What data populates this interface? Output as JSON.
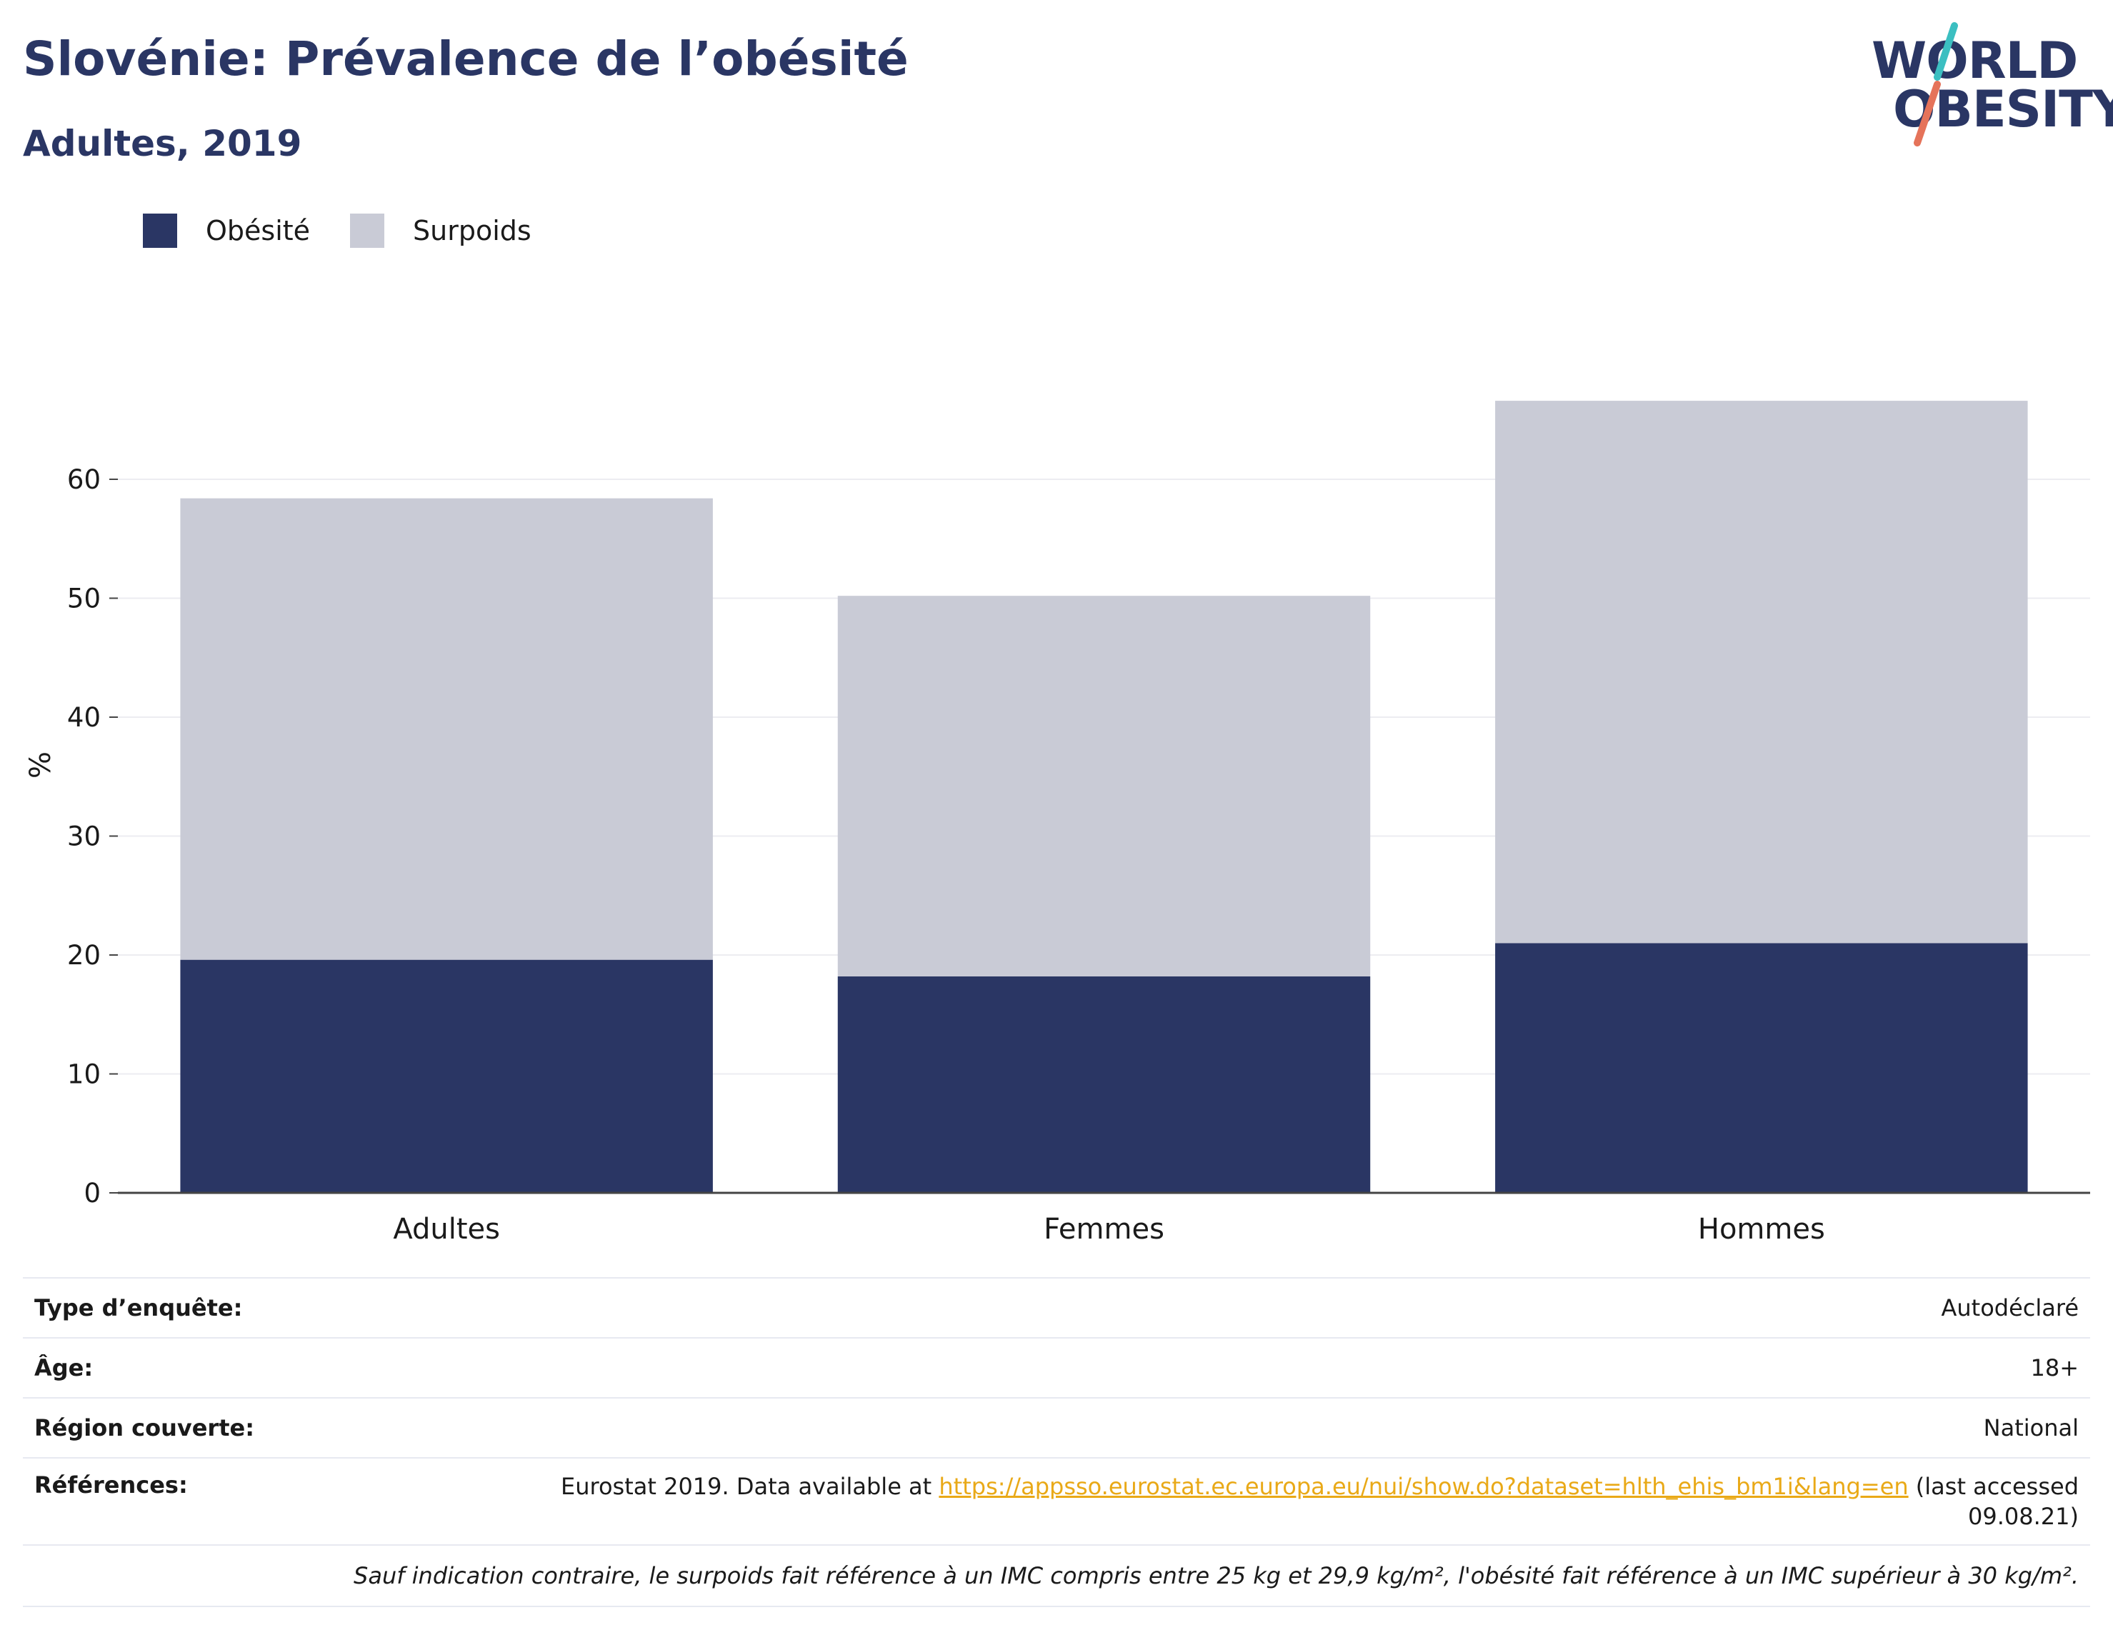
{
  "header": {
    "title": "Slovénie: Prévalence de l’obésité",
    "subtitle": "Adultes, 2019"
  },
  "logo": {
    "line1": "WORLD",
    "line2": "OBESITY",
    "accent_teal": "#3bbfc1",
    "accent_coral": "#e5735a"
  },
  "colors": {
    "obesite": "#2a3664",
    "surpoids": "#c9cbd6"
  },
  "chart_data": {
    "type": "bar",
    "stacked": true,
    "categories": [
      "Adultes",
      "Femmes",
      "Hommes"
    ],
    "series": [
      {
        "name": "Obésité",
        "values": [
          19.6,
          18.2,
          21.0
        ]
      },
      {
        "name": "Surpoids",
        "values": [
          38.8,
          32.0,
          45.6
        ]
      }
    ],
    "ylabel": "%",
    "yticks": [
      0,
      10,
      20,
      30,
      40,
      50,
      60
    ],
    "ylim": [
      0,
      70
    ],
    "grid": true,
    "legend_position": "top-left"
  },
  "info": {
    "survey_type_label": "Type d’enquête:",
    "survey_type_value": "Autodéclaré",
    "age_label": "Âge:",
    "age_value": "18+",
    "region_label": "Région couverte:",
    "region_value": "National",
    "references_label": "Références:",
    "references_prefix": "Eurostat 2019. Data available at ",
    "references_link": "https://appsso.eurostat.ec.europa.eu/nui/show.do?dataset=hlth_ehis_bm1i&lang=en",
    "references_suffix": " (last accessed",
    "references_date": "09.08.21)",
    "footnote": "Sauf indication contraire, le surpoids fait référence à un IMC compris entre 25 kg et 29,9 kg/m², l'obésité fait référence à un IMC supérieur à 30 kg/m²."
  }
}
